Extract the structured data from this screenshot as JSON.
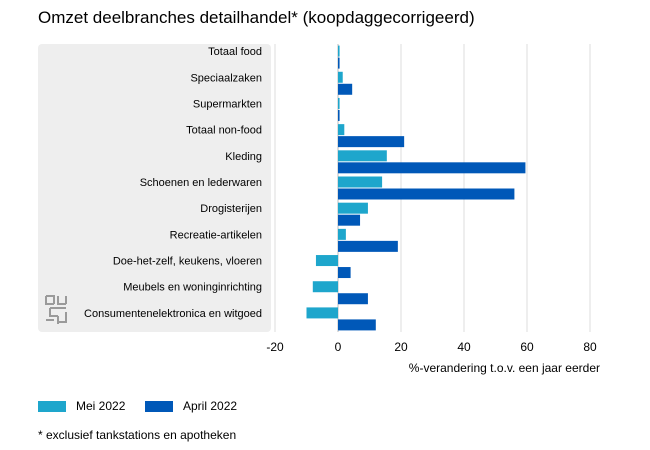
{
  "title": "Omzet deelbranches detailhandel* (koopdaggecorrigeerd)",
  "footnote": "* exclusief tankstations en apotheken",
  "logo": "cbs-logo",
  "chart_data": {
    "type": "bar",
    "orientation": "horizontal",
    "categories": [
      "Totaal food",
      "Speciaalzaken",
      "Supermarkten",
      "Totaal non-food",
      "Kleding",
      "Schoenen en lederwaren",
      "Drogisterijen",
      "Recreatie-artikelen",
      "Doe-het-zelf, keukens, vloeren",
      "Meubels en woninginrichting",
      "Consumentenelektronica en witgoed"
    ],
    "series": [
      {
        "name": "Mei 2022",
        "color": "#1ea6cc",
        "values": [
          0.5,
          1.5,
          0.5,
          2,
          15.5,
          14,
          9.5,
          2.5,
          -7,
          -8,
          -10
        ]
      },
      {
        "name": "April 2022",
        "color": "#0058b8",
        "values": [
          0.5,
          4.5,
          0.5,
          21,
          59.5,
          56,
          7,
          19,
          4,
          9.5,
          12
        ]
      }
    ],
    "xlim": [
      -20,
      80
    ],
    "xticks": [
      -20,
      0,
      20,
      40,
      60,
      80
    ],
    "xlabel": "%-verandering t.o.v. een jaar eerder",
    "ylabel": "",
    "grid": true,
    "legend_position": "bottom-left"
  }
}
